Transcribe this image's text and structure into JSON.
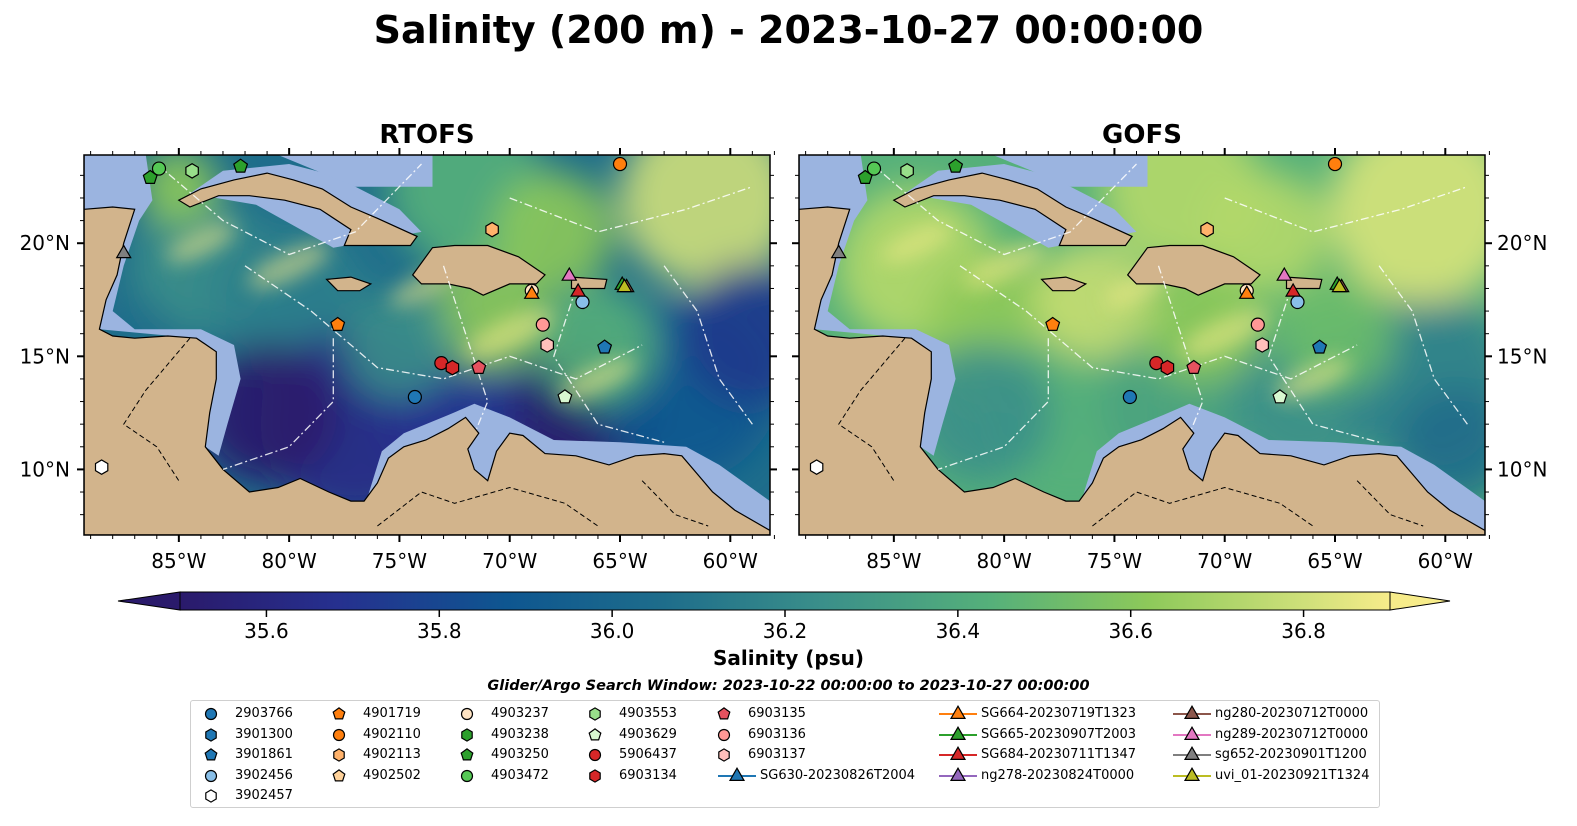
{
  "title": "Salinity (200 m) - 2023-10-27 00:00:00",
  "panels": [
    {
      "title": "RTOFS"
    },
    {
      "title": "GOFS"
    }
  ],
  "axes": {
    "lon_ticks": [
      "85°W",
      "80°W",
      "75°W",
      "70°W",
      "65°W",
      "60°W"
    ],
    "lat_ticks": [
      "20°N",
      "15°N",
      "10°N"
    ]
  },
  "colorbar": {
    "label": "Salinity (psu)",
    "ticks": [
      "35.6",
      "35.8",
      "36.0",
      "36.2",
      "36.4",
      "36.6",
      "36.8"
    ],
    "min": 35.5,
    "max": 37.0,
    "colormap": "haline",
    "extend": "both"
  },
  "search_window": "Glider/Argo Search Window: 2023-10-22 00:00:00 to 2023-10-27 00:00:00",
  "colors": {
    "land": "#d2b48c",
    "shelf": "#9bb4e0",
    "ocean_low": "#2a1a6b",
    "ocean_mid": "#3a8f8a",
    "ocean_high": "#f7ec8a"
  },
  "legend": [
    {
      "label": "2903766",
      "marker": "circle",
      "color": "#1f77b4"
    },
    {
      "label": "3901300",
      "marker": "hexagon",
      "color": "#1f77b4"
    },
    {
      "label": "3901861",
      "marker": "pentagon",
      "color": "#1f77b4"
    },
    {
      "label": "3902456",
      "marker": "circle",
      "color": "#89bfe8"
    },
    {
      "label": "3902457",
      "marker": "hexagon",
      "color": "#ffffff"
    },
    {
      "label": "4901719",
      "marker": "pentagon",
      "color": "#ff7f0e"
    },
    {
      "label": "4902110",
      "marker": "circle",
      "color": "#ff7f0e"
    },
    {
      "label": "4902113",
      "marker": "hexagon",
      "color": "#ffb26b"
    },
    {
      "label": "4902502",
      "marker": "pentagon",
      "color": "#ffd29a"
    },
    {
      "label": "4903237",
      "marker": "circle",
      "color": "#ffe4c4"
    },
    {
      "label": "4903238",
      "marker": "hexagon",
      "color": "#2ca02c"
    },
    {
      "label": "4903250",
      "marker": "pentagon",
      "color": "#2ca02c"
    },
    {
      "label": "4903472",
      "marker": "circle",
      "color": "#55c855"
    },
    {
      "label": "4903553",
      "marker": "hexagon",
      "color": "#98df8a"
    },
    {
      "label": "4903629",
      "marker": "pentagon",
      "color": "#d8f8d0"
    },
    {
      "label": "5906437",
      "marker": "circle",
      "color": "#d62728"
    },
    {
      "label": "6903134",
      "marker": "hexagon",
      "color": "#d62728"
    },
    {
      "label": "6903135",
      "marker": "pentagon",
      "color": "#e5525f"
    },
    {
      "label": "6903136",
      "marker": "circle",
      "color": "#ff9896"
    },
    {
      "label": "6903137",
      "marker": "hexagon",
      "color": "#ffc0bb"
    },
    {
      "label": "SG630-20230826T2004",
      "marker": "triangle",
      "color": "#1f77b4"
    },
    {
      "label": "SG664-20230719T1323",
      "marker": "triangle",
      "color": "#ff7f0e"
    },
    {
      "label": "SG665-20230907T2003",
      "marker": "triangle",
      "color": "#2ca02c"
    },
    {
      "label": "SG684-20230711T1347",
      "marker": "triangle",
      "color": "#d62728"
    },
    {
      "label": "ng278-20230824T0000",
      "marker": "triangle",
      "color": "#9467bd"
    },
    {
      "label": "ng280-20230712T0000",
      "marker": "triangle",
      "color": "#8c564b"
    },
    {
      "label": "ng289-20230712T0000",
      "marker": "triangle",
      "color": "#e377c2"
    },
    {
      "label": "sg652-20230901T1200",
      "marker": "triangle",
      "color": "#7f7f7f"
    },
    {
      "label": "uvi_01-20230921T1324",
      "marker": "triangle",
      "color": "#bcbd22"
    }
  ],
  "map_markers": [
    {
      "id": "3901861",
      "lon": -65.7,
      "lat": 15.4
    },
    {
      "id": "2903766",
      "lon": -74.3,
      "lat": 13.2
    },
    {
      "id": "3902456",
      "lon": -66.7,
      "lat": 17.4
    },
    {
      "id": "3902457",
      "lon": -88.5,
      "lat": 10.1
    },
    {
      "id": "4901719",
      "lon": -77.8,
      "lat": 16.4
    },
    {
      "id": "4902110",
      "lon": -65.0,
      "lat": 23.5
    },
    {
      "id": "4902113",
      "lon": -70.8,
      "lat": 20.6
    },
    {
      "id": "4903237",
      "lon": -69.0,
      "lat": 17.9
    },
    {
      "id": "4903250",
      "lon": -86.3,
      "lat": 22.9
    },
    {
      "id": "4903250",
      "lon": -82.2,
      "lat": 23.4
    },
    {
      "id": "4903472",
      "lon": -85.9,
      "lat": 23.3
    },
    {
      "id": "4903553",
      "lon": -84.4,
      "lat": 23.2
    },
    {
      "id": "4903629",
      "lon": -67.5,
      "lat": 13.2
    },
    {
      "id": "5906437",
      "lon": -73.1,
      "lat": 14.7
    },
    {
      "id": "6903134",
      "lon": -72.6,
      "lat": 14.5
    },
    {
      "id": "6903135",
      "lon": -71.4,
      "lat": 14.5
    },
    {
      "id": "6903136",
      "lon": -68.5,
      "lat": 16.4
    },
    {
      "id": "6903137",
      "lon": -68.3,
      "lat": 15.5
    },
    {
      "id": "SG664-20230719T1323",
      "lon": -69.0,
      "lat": 17.8
    },
    {
      "id": "SG665-20230907T2003",
      "lon": -64.9,
      "lat": 18.2
    },
    {
      "id": "SG684-20230711T1347",
      "lon": -66.9,
      "lat": 17.9
    },
    {
      "id": "ng280-20230712T0000",
      "lon": -64.7,
      "lat": 18.1
    },
    {
      "id": "ng289-20230712T0000",
      "lon": -67.3,
      "lat": 18.6
    },
    {
      "id": "sg652-20230901T1200",
      "lon": -87.5,
      "lat": 19.6
    },
    {
      "id": "uvi_01-20230921T1324",
      "lon": -64.8,
      "lat": 18.1
    }
  ]
}
